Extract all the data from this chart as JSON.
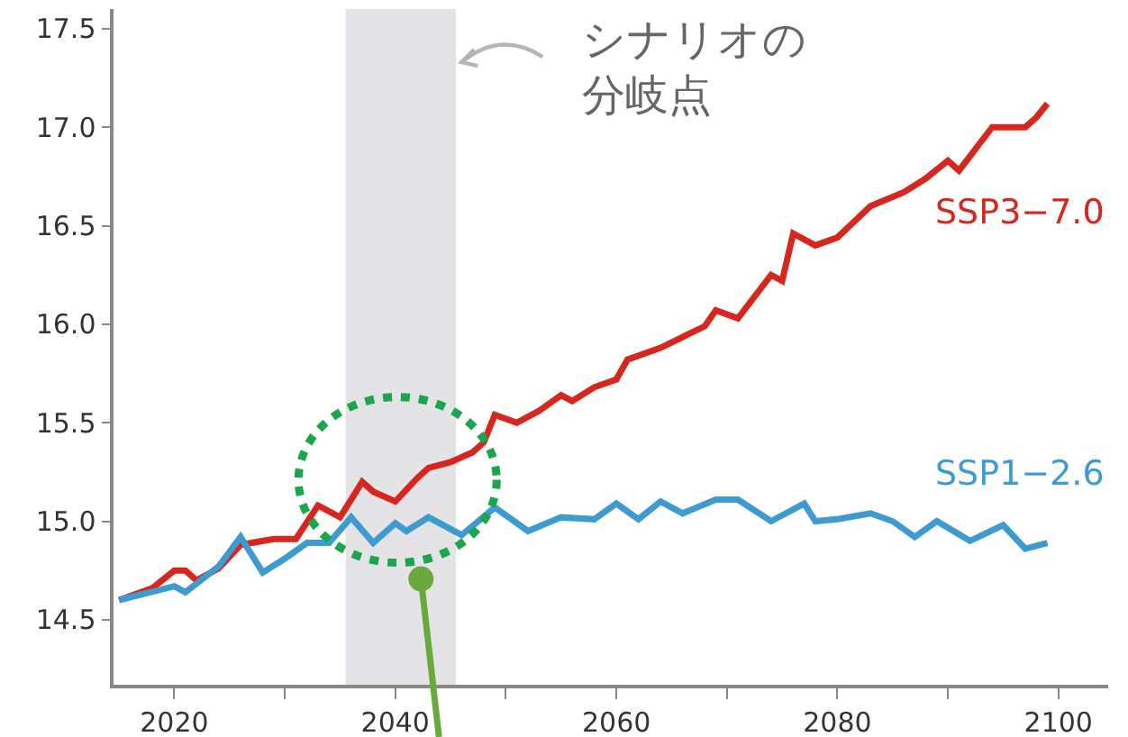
{
  "chart_data": {
    "type": "line",
    "series": [
      {
        "name": "SSP3−7.0",
        "color": "#d7261e",
        "x": [
          2015,
          2018,
          2020,
          2021,
          2022,
          2024,
          2026,
          2027,
          2029,
          2031,
          2033,
          2035,
          2037,
          2038,
          2040,
          2042,
          2043,
          2045,
          2047,
          2048,
          2049,
          2051,
          2053,
          2055,
          2056,
          2058,
          2060,
          2061,
          2064,
          2068,
          2069,
          2071,
          2074,
          2075,
          2076,
          2078,
          2080,
          2083,
          2086,
          2088,
          2090,
          2091,
          2094,
          2097,
          2098,
          2099
        ],
        "values": [
          14.6,
          14.66,
          14.75,
          14.75,
          14.7,
          14.76,
          14.88,
          14.89,
          14.91,
          14.91,
          15.08,
          15.02,
          15.2,
          15.15,
          15.1,
          15.22,
          15.27,
          15.3,
          15.35,
          15.4,
          15.54,
          15.5,
          15.56,
          15.64,
          15.61,
          15.68,
          15.72,
          15.82,
          15.88,
          15.99,
          16.07,
          16.03,
          16.25,
          16.22,
          16.46,
          16.4,
          16.44,
          16.6,
          16.67,
          16.74,
          16.83,
          16.78,
          17.0,
          17.0,
          17.05,
          17.12
        ]
      },
      {
        "name": "SSP1−2.6",
        "color": "#3d9bd0",
        "x": [
          2015,
          2020,
          2021,
          2024,
          2026,
          2028,
          2030,
          2032,
          2034,
          2036,
          2038,
          2040,
          2041,
          2043,
          2046,
          2049,
          2052,
          2055,
          2058,
          2060,
          2062,
          2064,
          2066,
          2069,
          2071,
          2074,
          2077,
          2078,
          2080,
          2083,
          2085,
          2087,
          2089,
          2092,
          2095,
          2097,
          2099
        ],
        "values": [
          14.6,
          14.67,
          14.64,
          14.77,
          14.92,
          14.74,
          14.81,
          14.89,
          14.89,
          15.02,
          14.89,
          14.99,
          14.95,
          15.02,
          14.93,
          15.07,
          14.95,
          15.02,
          15.01,
          15.09,
          15.01,
          15.1,
          15.04,
          15.11,
          15.11,
          15.0,
          15.09,
          15.0,
          15.01,
          15.04,
          15.0,
          14.92,
          15.0,
          14.9,
          14.98,
          14.86,
          14.89
        ]
      }
    ],
    "xlim": [
      2014.5,
      2104.5
    ],
    "xticks": [
      2020,
      {
        "value": 2030,
        "label": null
      },
      2040,
      {
        "value": 2050,
        "label": null
      },
      2060,
      {
        "value": 2070,
        "label": null
      },
      2080,
      {
        "value": 2090,
        "label": null
      },
      2100
    ],
    "ylim": [
      14.17,
      17.6
    ],
    "yticks": [
      14.5,
      {
        "value": 15,
        "label": "15.0"
      },
      15.5,
      {
        "value": 16,
        "label": "16.0"
      },
      16.5,
      {
        "value": 17,
        "label": "17.0"
      },
      17.5
    ],
    "bands": [
      {
        "axis": "x",
        "from": 2035.5,
        "to": 2045.5,
        "color": "#e4e4e6"
      }
    ],
    "annotations": [
      {
        "text": "シナリオの分岐点",
        "x": 2045.5,
        "y": 17.33
      }
    ],
    "grid": false,
    "legend": false,
    "marker": "none",
    "line_style": "solid"
  }
}
